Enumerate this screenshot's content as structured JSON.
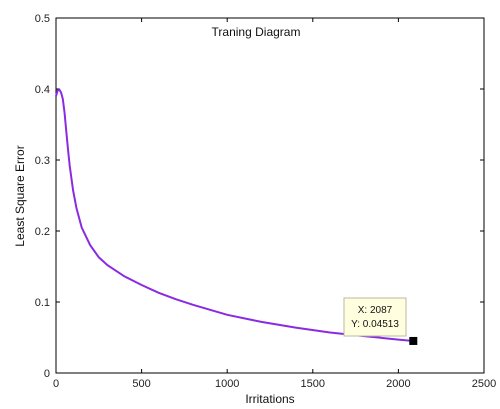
{
  "chart_data": {
    "type": "line",
    "title": "Traning Diagram",
    "xlabel": "Irritations",
    "ylabel": "Least Square Error",
    "xlim": [
      0,
      2500
    ],
    "ylim": [
      0,
      0.5
    ],
    "xticks": [
      0,
      500,
      1000,
      1500,
      2000,
      2500
    ],
    "yticks": [
      0,
      0.1,
      0.2,
      0.3,
      0.4,
      0.5
    ],
    "xtick_labels": [
      "0",
      "500",
      "1000",
      "1500",
      "2000",
      "2500"
    ],
    "ytick_labels": [
      "0",
      "0.1",
      "0.2",
      "0.3",
      "0.4",
      "0.5"
    ],
    "grid": false,
    "line_color": "#8a2be2",
    "series": [
      {
        "x": [
          0,
          10,
          20,
          30,
          40,
          50,
          60,
          70,
          80,
          100,
          120,
          150,
          200,
          250,
          300,
          400,
          500,
          600,
          700,
          800,
          900,
          1000,
          1200,
          1400,
          1600,
          1800,
          2000,
          2087
        ],
        "y": [
          0.39,
          0.398,
          0.399,
          0.395,
          0.386,
          0.366,
          0.34,
          0.315,
          0.292,
          0.257,
          0.232,
          0.205,
          0.18,
          0.163,
          0.152,
          0.136,
          0.124,
          0.113,
          0.104,
          0.096,
          0.089,
          0.082,
          0.072,
          0.064,
          0.057,
          0.052,
          0.047,
          0.04513
        ]
      }
    ],
    "annotation": {
      "x_label": "X: 2087",
      "y_label": "Y: 0.04513",
      "x": 2087,
      "y": 0.04513
    }
  }
}
